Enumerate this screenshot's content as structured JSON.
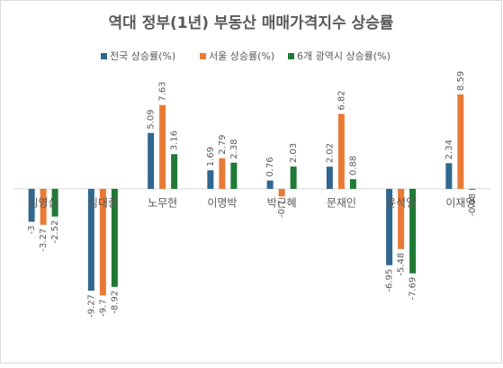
{
  "chart_data": {
    "type": "bar",
    "title": "역대 정부(1년) 부동산 매매가격지수 상승률",
    "categories": [
      "김영삼",
      "김대중",
      "노무현",
      "이명박",
      "박근혜",
      "문재인",
      "윤석열",
      "이재명"
    ],
    "series": [
      {
        "name": "전국 상승률(%)",
        "color": "#2f6790",
        "values": [
          -3,
          -9.27,
          5.09,
          1.69,
          0.76,
          2.02,
          -6.95,
          2.34
        ]
      },
      {
        "name": "서울 상승률(%)",
        "color": "#e97a36",
        "values": [
          -3.27,
          -9.7,
          7.63,
          2.79,
          -0.7,
          6.82,
          -5.48,
          8.59
        ]
      },
      {
        "name": "6개 광역시 상승률(%)",
        "color": "#1f7a35",
        "values": [
          -2.52,
          -8.92,
          3.16,
          2.38,
          2.03,
          0.88,
          -7.69,
          -0.08
        ]
      }
    ],
    "ylim": [
      -10,
      9
    ],
    "grid": false
  }
}
